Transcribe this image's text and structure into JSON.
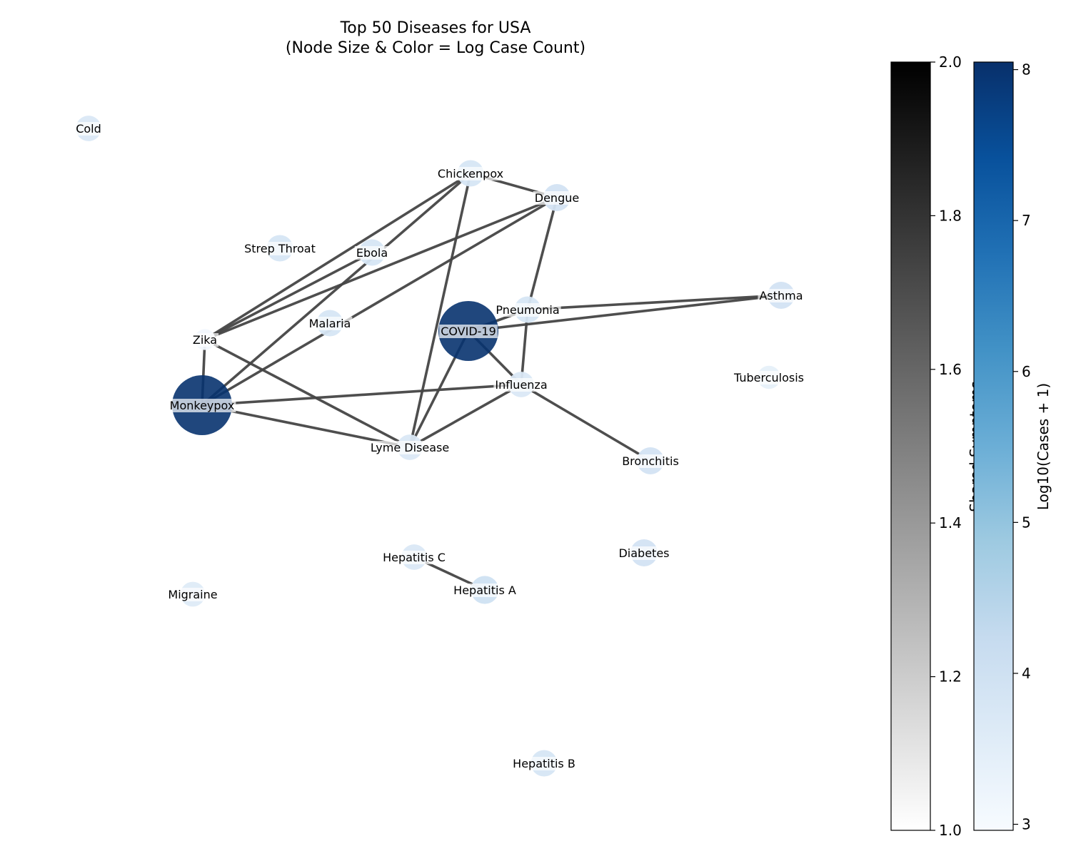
{
  "title": {
    "line1": "Top 50 Diseases for USA",
    "line2": "(Node Size & Color = Log Case Count)"
  },
  "colors": {
    "edge": "#444444",
    "node_low": "#f7fbff",
    "node_high": "#08306b",
    "gray_low": "#ffffff",
    "gray_high": "#000000"
  },
  "chart_data": {
    "type": "network",
    "nodes": [
      {
        "id": "Cold",
        "log_cases": 3.7
      },
      {
        "id": "Chickenpox",
        "log_cases": 3.8
      },
      {
        "id": "Dengue",
        "log_cases": 3.9
      },
      {
        "id": "Strep Throat",
        "log_cases": 3.8
      },
      {
        "id": "Ebola",
        "log_cases": 3.8
      },
      {
        "id": "Asthma",
        "log_cases": 3.9
      },
      {
        "id": "Pneumonia",
        "log_cases": 3.8
      },
      {
        "id": "Malaria",
        "log_cases": 3.8
      },
      {
        "id": "COVID-19",
        "log_cases": 8.0
      },
      {
        "id": "Zika",
        "log_cases": 3.1
      },
      {
        "id": "Tuberculosis",
        "log_cases": 3.4
      },
      {
        "id": "Influenza",
        "log_cases": 3.7
      },
      {
        "id": "Monkeypox",
        "log_cases": 8.0
      },
      {
        "id": "Lyme Disease",
        "log_cases": 3.7
      },
      {
        "id": "Bronchitis",
        "log_cases": 3.9
      },
      {
        "id": "Hepatitis C",
        "log_cases": 3.7
      },
      {
        "id": "Diabetes",
        "log_cases": 3.9
      },
      {
        "id": "Hepatitis A",
        "log_cases": 4.0
      },
      {
        "id": "Migraine",
        "log_cases": 3.6
      },
      {
        "id": "Hepatitis B",
        "log_cases": 3.8
      }
    ],
    "edges": [
      {
        "source": "Chickenpox",
        "target": "Dengue",
        "shared": 2
      },
      {
        "source": "Chickenpox",
        "target": "Zika",
        "shared": 2
      },
      {
        "source": "Chickenpox",
        "target": "Monkeypox",
        "shared": 2
      },
      {
        "source": "Chickenpox",
        "target": "Lyme Disease",
        "shared": 2
      },
      {
        "source": "Dengue",
        "target": "Zika",
        "shared": 2
      },
      {
        "source": "Dengue",
        "target": "Monkeypox",
        "shared": 2
      },
      {
        "source": "Dengue",
        "target": "Pneumonia",
        "shared": 2
      },
      {
        "source": "Ebola",
        "target": "Zika",
        "shared": 2
      },
      {
        "source": "Zika",
        "target": "Monkeypox",
        "shared": 2
      },
      {
        "source": "Zika",
        "target": "Lyme Disease",
        "shared": 2
      },
      {
        "source": "Pneumonia",
        "target": "Asthma",
        "shared": 2
      },
      {
        "source": "Pneumonia",
        "target": "Influenza",
        "shared": 2
      },
      {
        "source": "Pneumonia",
        "target": "COVID-19",
        "shared": 2
      },
      {
        "source": "COVID-19",
        "target": "Asthma",
        "shared": 2
      },
      {
        "source": "COVID-19",
        "target": "Influenza",
        "shared": 2
      },
      {
        "source": "COVID-19",
        "target": "Lyme Disease",
        "shared": 2
      },
      {
        "source": "Influenza",
        "target": "Monkeypox",
        "shared": 2
      },
      {
        "source": "Influenza",
        "target": "Lyme Disease",
        "shared": 2
      },
      {
        "source": "Influenza",
        "target": "Bronchitis",
        "shared": 2
      },
      {
        "source": "Monkeypox",
        "target": "Lyme Disease",
        "shared": 2
      },
      {
        "source": "Hepatitis C",
        "target": "Hepatitis A",
        "shared": 2
      }
    ],
    "colorbar_edges": {
      "label": "Shared Symptoms",
      "range": [
        1.0,
        2.0
      ],
      "ticks": [
        "1.0",
        "1.2",
        "1.4",
        "1.6",
        "1.8",
        "2.0"
      ]
    },
    "colorbar_nodes": {
      "label": "Log10(Cases + 1)",
      "range": [
        2.96,
        8.05
      ],
      "ticks": [
        "3",
        "4",
        "5",
        "6",
        "7",
        "8"
      ]
    }
  }
}
